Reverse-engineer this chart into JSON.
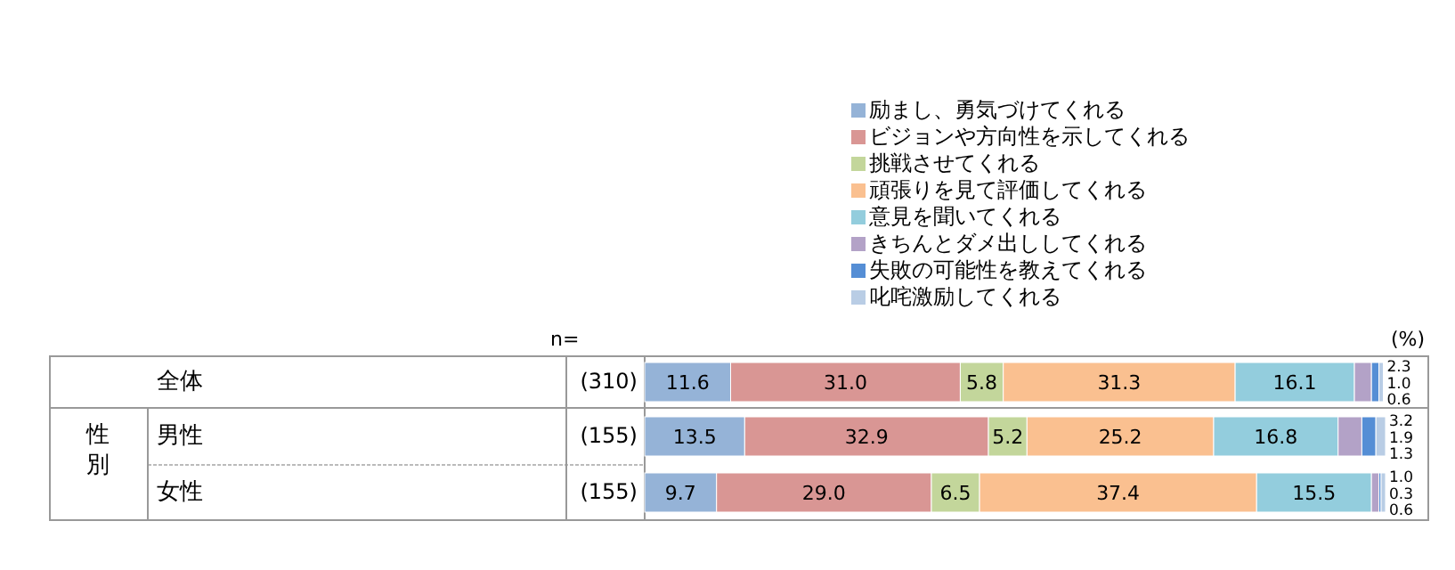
{
  "chart_data": {
    "type": "bar",
    "orientation": "horizontal",
    "stacked": true,
    "legend": "top",
    "xlim": [
      0,
      100
    ],
    "tick_labels": "y",
    "categories": [
      "全体",
      "男性",
      "女性"
    ],
    "series": [
      {
        "name": "励まし、勇気づけてくれる",
        "color": "#95b3d7",
        "values": [
          11.6,
          13.5,
          9.7
        ],
        "value_labels": [
          "11.6",
          "13.5",
          "9.7"
        ]
      },
      {
        "name": "ビジョンや方向性を示してくれる",
        "color": "#d99694",
        "values": [
          31.0,
          32.9,
          29.0
        ],
        "value_labels": [
          "31.0",
          "32.9",
          "29.0"
        ]
      },
      {
        "name": "挑戦させてくれる",
        "color": "#c3d69b",
        "values": [
          5.8,
          5.2,
          6.5
        ],
        "value_labels": [
          "5.8",
          "5.2",
          "6.5"
        ]
      },
      {
        "name": "頑張りを見て評価してくれる",
        "color": "#fac090",
        "values": [
          31.3,
          25.2,
          37.4
        ],
        "value_labels": [
          "31.3",
          "25.2",
          "37.4"
        ]
      },
      {
        "name": "意見を聞いてくれる",
        "color": "#93cddd",
        "values": [
          16.1,
          16.8,
          15.5
        ],
        "value_labels": [
          "16.1",
          "16.8",
          "15.5"
        ]
      },
      {
        "name": "きちんとダメ出ししてくれる",
        "color": "#b3a2c7",
        "values": [
          2.3,
          3.2,
          1.0
        ],
        "value_labels": [
          "2.3",
          "3.2",
          "1.0"
        ]
      },
      {
        "name": "失敗の可能性を教えてくれる",
        "color": "#558ed5",
        "values": [
          1.0,
          1.9,
          0.3
        ],
        "value_labels": [
          "1.0",
          "1.9",
          "0.3"
        ]
      },
      {
        "name": "叱咤激励してくれる",
        "color": "#b9cde5",
        "values": [
          0.6,
          1.3,
          0.6
        ],
        "value_labels": [
          "0.6",
          "1.3",
          "0.6"
        ]
      }
    ],
    "annotations": [
      "n=",
      "(310)",
      "(155)",
      "(155)",
      "性別",
      "(%)"
    ]
  }
}
